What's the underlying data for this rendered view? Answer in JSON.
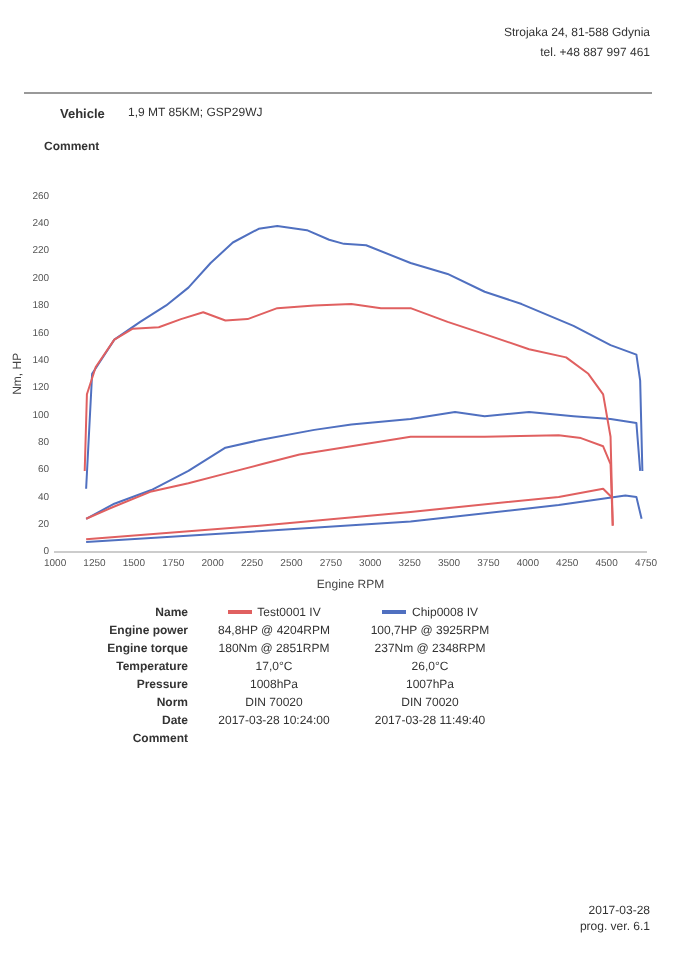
{
  "chart_data": {
    "type": "line",
    "xlabel": "Engine RPM",
    "ylabel": "Nm, HP",
    "legend_title": "Name",
    "legend": "bottom",
    "grid": false,
    "marker": "none",
    "line_style": "solid",
    "xlim": [
      1000,
      4750
    ],
    "xticks": [
      1000,
      1250,
      1500,
      1750,
      2000,
      2250,
      2500,
      2750,
      3000,
      3250,
      3500,
      3750,
      4000,
      4250,
      4500,
      4750
    ],
    "ylim": [
      0,
      260
    ],
    "yticks": [
      0,
      20,
      40,
      60,
      80,
      100,
      120,
      140,
      160,
      180,
      200,
      220,
      240,
      260
    ],
    "series": [
      {
        "name": "Test0001 IV",
        "color": "#e06060",
        "x": [
          1188,
          1202,
          1258,
          1376,
          1493,
          1658,
          1799,
          1940,
          2081,
          2222,
          2410,
          2645,
          2880,
          3068,
          3256,
          3491,
          3726,
          4008,
          4243,
          4384,
          4478,
          4525,
          4539
        ],
        "values": [
          59,
          115,
          135,
          155,
          163,
          164,
          170,
          175,
          169,
          170,
          178,
          180,
          181,
          178,
          178,
          168,
          159,
          148,
          142,
          130,
          115,
          84,
          19
        ]
      },
      {
        "name": "Chip0008 IV",
        "color": "#5070c0",
        "x": [
          1197,
          1235,
          1376,
          1540,
          1705,
          1846,
          1987,
          2128,
          2292,
          2410,
          2598,
          2739,
          2833,
          2974,
          3256,
          3491,
          3726,
          3961,
          4290,
          4525,
          4689,
          4713,
          4727
        ],
        "values": [
          46,
          130,
          155,
          168,
          180,
          193,
          211,
          226,
          236,
          238,
          235,
          228,
          225,
          224,
          211,
          203,
          190,
          181,
          165,
          151,
          144,
          125,
          59
        ]
      },
      {
        "color": "#e06060",
        "x": [
          1197,
          1376,
          1611,
          1846,
          2081,
          2316,
          2551,
          2880,
          3256,
          3726,
          4196,
          4337,
          4478,
          4525,
          4539
        ],
        "values": [
          24,
          33,
          44,
          50,
          57,
          64,
          71,
          77,
          84,
          84,
          85,
          83,
          77,
          64,
          19
        ]
      },
      {
        "color": "#5070c0",
        "x": [
          1197,
          1376,
          1611,
          1846,
          2081,
          2316,
          2645,
          2880,
          3256,
          3538,
          3726,
          4008,
          4290,
          4525,
          4689,
          4713
        ],
        "values": [
          24,
          35,
          45,
          59,
          76,
          82,
          89,
          93,
          97,
          102,
          99,
          102,
          99,
          97,
          94,
          59
        ]
      },
      {
        "color": "#e06060",
        "x": [
          1197,
          2316,
          3256,
          4196,
          4478,
          4539
        ],
        "values": [
          9,
          19,
          29,
          40,
          46,
          39
        ]
      },
      {
        "color": "#5070c0",
        "x": [
          1197,
          2316,
          3256,
          4196,
          4619,
          4689,
          4722
        ],
        "values": [
          7,
          15,
          22,
          34,
          41,
          40,
          24
        ]
      }
    ],
    "annotations": [
      "Strojaka 24, 81-588 Gdynia",
      "tel. +48 887 997 461",
      "Vehicle",
      "1,9 MT 85KM; GSP29WJ",
      "Comment",
      "Engine power",
      "84,8HP @ 4204RPM",
      "100,7HP @ 3925RPM",
      "Engine torque",
      "180Nm @ 2851RPM",
      "237Nm @ 2348RPM",
      "Temperature",
      "17,0°C",
      "26,0°C",
      "Pressure",
      "1008hPa",
      "1007hPa",
      "Norm",
      "DIN 70020",
      "DIN 70020",
      "Date",
      "2017-03-28 10:24:00",
      "2017-03-28 11:49:40",
      "Comment",
      "2017-03-28",
      "prog. ver. 6.1"
    ]
  }
}
